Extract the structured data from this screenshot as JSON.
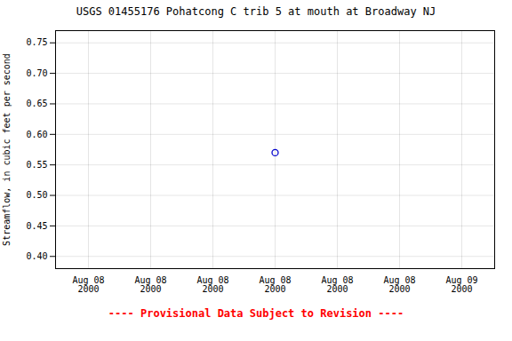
{
  "chart_data": {
    "type": "scatter",
    "title": "USGS 01455176 Pohatcong C trib 5 at mouth at Broadway NJ",
    "ylabel": "Streamflow, in cubic feet per second",
    "categories": [
      "Aug 08\n2000",
      "Aug 08\n2000",
      "Aug 08\n2000",
      "Aug 08\n2000",
      "Aug 08\n2000",
      "Aug 08\n2000",
      "Aug 09\n2000"
    ],
    "values": [
      null,
      null,
      null,
      0.57,
      null,
      null,
      null
    ],
    "color": "#0000cc",
    "marker": "circle",
    "ylim": [
      0.38,
      0.77
    ],
    "yticks": [
      {
        "value": 0.4,
        "label": "0.40"
      },
      0.45,
      {
        "value": 0.5,
        "label": "0.50"
      },
      0.55,
      {
        "value": 0.6,
        "label": "0.60"
      },
      0.65,
      {
        "value": 0.7,
        "label": "0.70"
      },
      0.75
    ],
    "grid": true,
    "annotations": [
      {
        "text": "---- Provisional Data Subject to Revision ----",
        "color": "red"
      }
    ]
  }
}
